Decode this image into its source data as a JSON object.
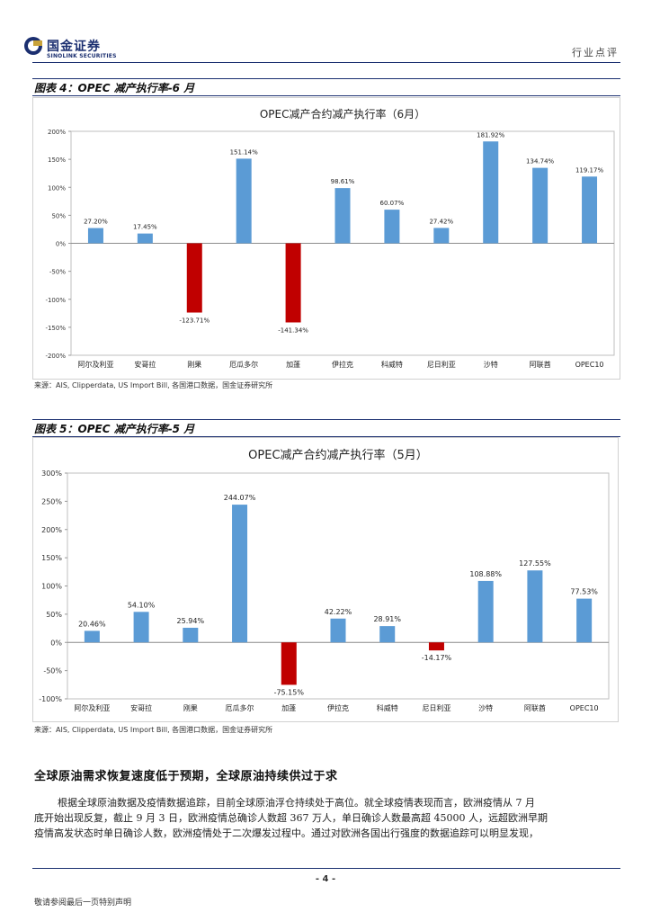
{
  "header": {
    "logo_cn": "国金证券",
    "logo_en": "SINOLINK SECURITIES",
    "doc_type": "行业点评"
  },
  "figure4": {
    "caption": "图表 4：OPEC 减产执行率-6 月",
    "source": "来源：AIS, Clipperdata, US Import Bill, 各国港口数据，国金证券研究所"
  },
  "figure5": {
    "caption": "图表 5：OPEC 减产执行率-5 月",
    "source": "来源：AIS, Clipperdata, US Import Bill, 各国港口数据，国金证券研究所"
  },
  "chart_data": [
    {
      "type": "bar",
      "title": "OPEC减产合约减产执行率（6月）",
      "categories": [
        "阿尔及利亚",
        "安哥拉",
        "刚果",
        "厄瓜多尔",
        "加蓬",
        "伊拉克",
        "科威特",
        "尼日利亚",
        "沙特",
        "阿联酋",
        "OPEC10"
      ],
      "values": [
        27.2,
        17.45,
        -123.71,
        151.14,
        -141.34,
        98.61,
        60.07,
        27.42,
        181.92,
        134.74,
        119.17
      ],
      "labels": [
        "27.20%",
        "17.45%",
        "-123.71%",
        "151.14%",
        "-141.34%",
        "98.61%",
        "60.07%",
        "27.42%",
        "181.92%",
        "134.74%",
        "119.17%"
      ],
      "ylim": [
        -200,
        200
      ],
      "yticks": [
        -200,
        -150,
        -100,
        -50,
        0,
        50,
        100,
        150,
        200
      ],
      "ytick_labels": [
        "-200%",
        "-150%",
        "-100%",
        "-50%",
        "0%",
        "50%",
        "100%",
        "150%",
        "200%"
      ],
      "colors": {
        "positive": "#5b9bd5",
        "negative": "#c00000"
      },
      "grid": false
    },
    {
      "type": "bar",
      "title": "OPEC减产合约减产执行率（5月）",
      "categories": [
        "阿尔及利亚",
        "安哥拉",
        "刚果",
        "厄瓜多尔",
        "加蓬",
        "伊拉克",
        "科威特",
        "尼日利亚",
        "沙特",
        "阿联酋",
        "OPEC10"
      ],
      "values": [
        20.46,
        54.1,
        25.94,
        244.07,
        -75.15,
        42.22,
        28.91,
        -14.17,
        108.88,
        127.55,
        77.53
      ],
      "labels": [
        "20.46%",
        "54.10%",
        "25.94%",
        "244.07%",
        "-75.15%",
        "42.22%",
        "28.91%",
        "-14.17%",
        "108.88%",
        "127.55%",
        "77.53%"
      ],
      "ylim": [
        -100,
        300
      ],
      "yticks": [
        -100,
        -50,
        0,
        50,
        100,
        150,
        200,
        250,
        300
      ],
      "ytick_labels": [
        "-100%",
        "-50%",
        "0%",
        "50%",
        "100%",
        "150%",
        "200%",
        "250%",
        "300%"
      ],
      "colors": {
        "positive": "#5b9bd5",
        "negative": "#c00000"
      },
      "grid": false
    }
  ],
  "section": {
    "title": "全球原油需求恢复速度低于预期，全球原油持续供过于求",
    "lines": [
      "根据全球原油数据及疫情数据追踪，目前全球原油浮仓持续处于高位。就全球疫情表现而言，欧洲疫情从 7 月",
      "底开始出现反复，截止 9 月 3 日，欧洲疫情总确诊人数超 367 万人，单日确诊人数最高超 45000 人，远超欧洲早期",
      "疫情高发状态时单日确诊人数，欧洲疫情处于二次爆发过程中。通过对欧洲各国出行强度的数据追踪可以明显发现，"
    ]
  },
  "footer": {
    "page": "- 4 -",
    "note": "敬请参阅最后一页特别声明"
  }
}
